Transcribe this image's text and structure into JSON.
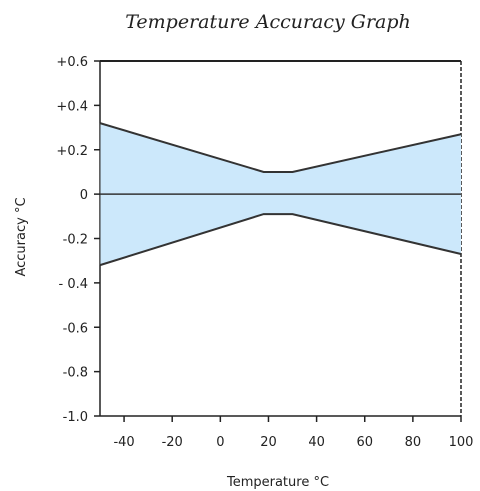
{
  "chart_data": {
    "type": "area",
    "title": "Temperature Accuracy Graph",
    "xlabel": "Temperature °C",
    "ylabel": "Accuracy °C",
    "xlim": [
      -50,
      100
    ],
    "ylim": [
      -1.0,
      0.6
    ],
    "x_ticks": [
      -40,
      -20,
      0,
      20,
      40,
      60,
      80,
      100
    ],
    "x_tick_labels": [
      "-40",
      "-20",
      "0",
      "20",
      "40",
      "60",
      "80",
      "100"
    ],
    "y_ticks": [
      0.6,
      0.4,
      0.2,
      0,
      -0.2,
      -0.4,
      -0.6,
      -0.8,
      -1.0
    ],
    "y_tick_labels": [
      "+0.6",
      "+0.4",
      "+0.2",
      "0",
      "-0.2",
      "- 0.4",
      "-0.6",
      "-0.8",
      "-1.0"
    ],
    "grid": false,
    "series": [
      {
        "x": [
          -50,
          18,
          30,
          100
        ],
        "upper": [
          0.32,
          0.1,
          0.1,
          0.27
        ],
        "lower": [
          -0.32,
          -0.09,
          -0.09,
          -0.27
        ]
      }
    ],
    "zero_line": 0,
    "colors": {
      "fill": "#cce8fb",
      "line": "#333333",
      "axis": "#222222",
      "tick_text": "#222222"
    }
  }
}
